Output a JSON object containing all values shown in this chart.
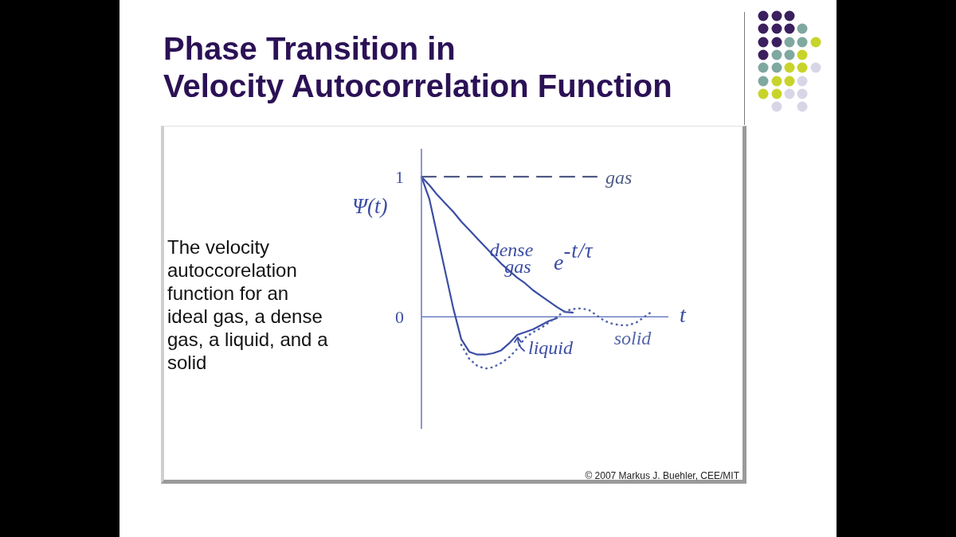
{
  "chart_data": {
    "type": "line",
    "title": "Phase Transition in\nVelocity Autocorrelation Function",
    "xlabel": "t",
    "ylabel": "Ψ(t)",
    "annotations": [
      "e$^{-t/τ}$",
      "The velocity autoccorelation function for an ideal gas, a dense gas, a liquid, and a solid",
      "© 2007 Markus J. Buehler, CEE/MIT"
    ],
    "categories": [
      null,
      null,
      null,
      null,
      null,
      null,
      null,
      null,
      null,
      null,
      null,
      null,
      null,
      null,
      null,
      null,
      null,
      null,
      null,
      null,
      null,
      null,
      null,
      null,
      null,
      null,
      null,
      null,
      null,
      null,
      null,
      null
    ],
    "series": [
      {
        "name": "gas",
        "color": "#4f5b85",
        "line_style": "dashed",
        "values": [
          1,
          1,
          1,
          1,
          1,
          1,
          1,
          1,
          1,
          1,
          1,
          1,
          1,
          1,
          1,
          1,
          1,
          1,
          1,
          1,
          1,
          1,
          1,
          null,
          null,
          null,
          null,
          null,
          null,
          null,
          null,
          null
        ]
      },
      {
        "name": "dense gas",
        "color": "#3b4da3",
        "line_style": "solid",
        "values": [
          1,
          0.94,
          0.87,
          0.81,
          0.75,
          0.68,
          0.62,
          0.56,
          0.5,
          0.44,
          0.38,
          0.33,
          0.28,
          0.24,
          0.19,
          0.15,
          0.11,
          0.07,
          0.035,
          0.03,
          null,
          null,
          null,
          null,
          null,
          null,
          null,
          null,
          null,
          null,
          null,
          null
        ]
      },
      {
        "name": "liquid",
        "color": "#3b4da3",
        "line_style": "solid",
        "values": [
          1,
          0.84,
          0.58,
          0.32,
          0.06,
          -0.16,
          -0.25,
          -0.27,
          -0.27,
          -0.26,
          -0.24,
          -0.19,
          -0.13,
          -0.11,
          -0.09,
          -0.06,
          -0.03,
          -0.01,
          null,
          null,
          null,
          null,
          null,
          null,
          null,
          null,
          null,
          null,
          null,
          null,
          null,
          null
        ]
      },
      {
        "name": "solid",
        "color": "#5566aa",
        "line_style": "dotted",
        "values": [
          null,
          null,
          null,
          null,
          null,
          -0.2,
          -0.3,
          -0.35,
          -0.37,
          -0.36,
          -0.33,
          -0.29,
          -0.23,
          -0.15,
          -0.11,
          -0.08,
          -0.04,
          0,
          0.04,
          0.055,
          0.06,
          0.05,
          0.01,
          -0.03,
          -0.05,
          -0.06,
          -0.06,
          -0.04,
          0,
          0.04,
          null,
          null
        ]
      }
    ],
    "ref_lines": [
      {
        "axis": "y",
        "value": 0,
        "color": "#6b7fc6"
      }
    ],
    "ylim": [
      -0.8,
      1.2
    ],
    "yticks": [
      0,
      1
    ],
    "marker": "none",
    "tick_labels": "y"
  }
}
